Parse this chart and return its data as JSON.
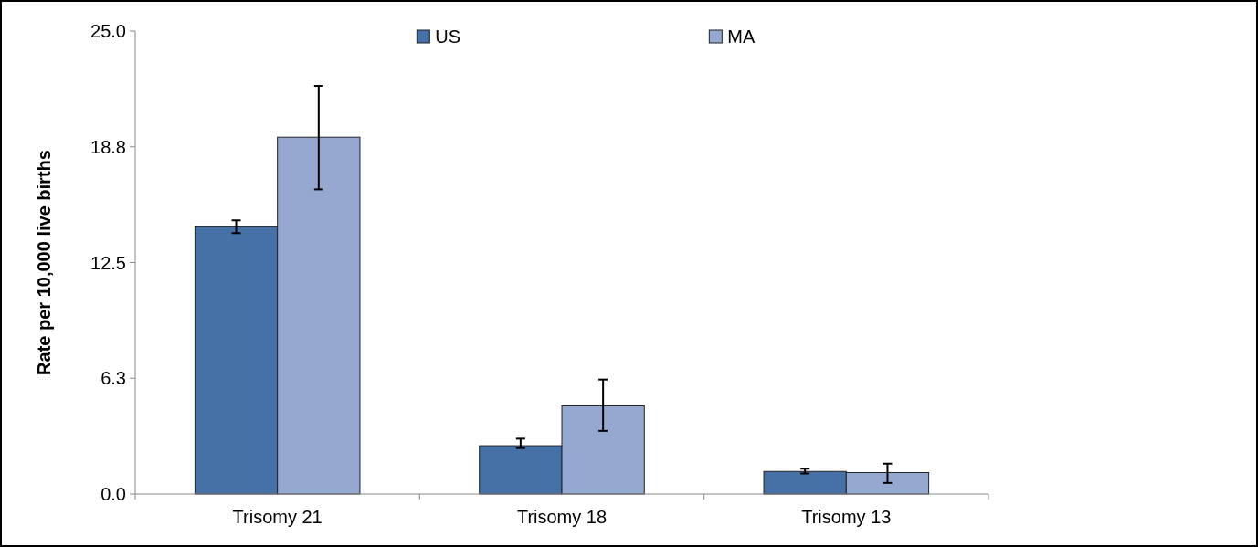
{
  "chart_data": {
    "type": "bar",
    "ylabel": "Rate per 10,000 live births",
    "categories": [
      "Trisomy 21",
      "Trisomy 18",
      "Trisomy 13"
    ],
    "series": [
      {
        "name": "US",
        "color": "#4571a7",
        "values": [
          14.43,
          2.61,
          1.22
        ],
        "errors": [
          [
            14.09,
            14.78
          ],
          [
            2.48,
            2.99
          ],
          [
            1.11,
            1.37
          ]
        ]
      },
      {
        "name": "MA",
        "color": "#95a9d0",
        "values": [
          19.27,
          4.76,
          1.16
        ],
        "errors": [
          [
            16.45,
            22.04
          ],
          [
            3.41,
            6.18
          ],
          [
            0.6,
            1.64
          ]
        ]
      }
    ],
    "ylim": [
      0,
      25
    ],
    "yticks": [
      {
        "value": 0,
        "label": "0.0"
      },
      {
        "value": 6.25,
        "label": "6.3"
      },
      {
        "value": 12.5,
        "label": "12.5"
      },
      {
        "value": 18.75,
        "label": "18.8"
      },
      {
        "value": 25,
        "label": "25.0"
      }
    ],
    "grid": false,
    "legend": "top"
  }
}
